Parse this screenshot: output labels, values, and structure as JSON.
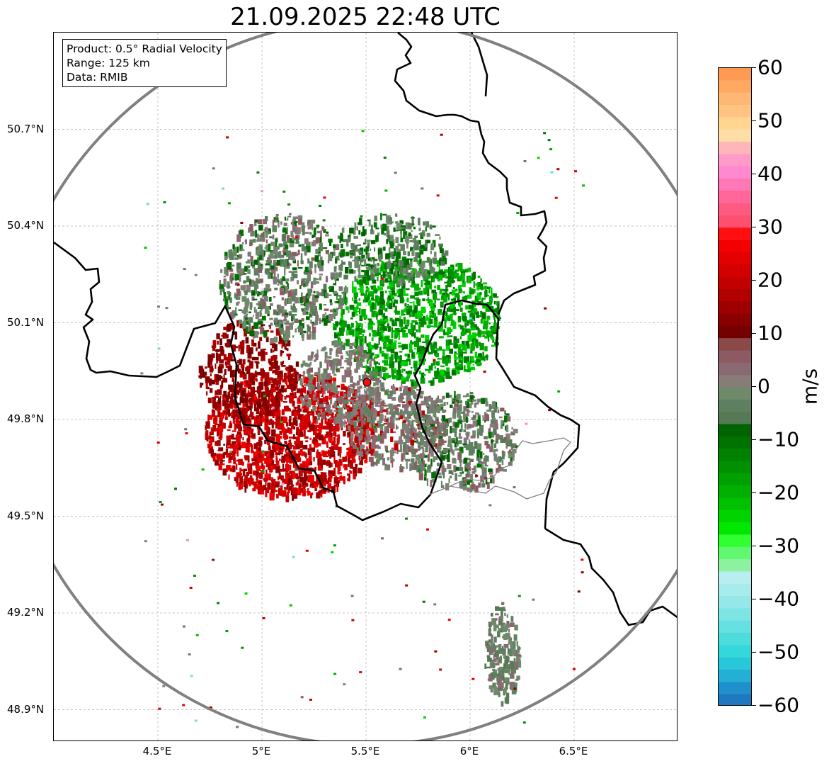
{
  "title": "21.09.2025 22:48 UTC",
  "info_box": {
    "product": "Product: 0.5° Radial Velocity",
    "range": "Range: 125 km",
    "data": "Data: RMIB"
  },
  "axes": {
    "lat_ticks": [
      "50.7°N",
      "50.4°N",
      "50.1°N",
      "49.8°N",
      "49.5°N",
      "49.2°N",
      "48.9°N"
    ],
    "lon_ticks": [
      "4.5°E",
      "5°E",
      "5.5°E",
      "6°E",
      "6.5°E"
    ],
    "lat_values": [
      50.7,
      50.4,
      50.1,
      49.8,
      49.5,
      49.2,
      48.9
    ],
    "lon_values": [
      4.5,
      5.0,
      5.5,
      6.0,
      6.5
    ],
    "lon_range": [
      4.0,
      7.0
    ],
    "lat_range": [
      48.8,
      51.0
    ],
    "gridlines": true
  },
  "radar": {
    "site_lon": 5.505,
    "site_lat": 49.915,
    "range_km": 125,
    "site_color": "#ee1111",
    "range_ring_color": "#808080"
  },
  "colorbar": {
    "label": "m/s",
    "vmin": -60,
    "vmax": 60,
    "ticks": [
      "60",
      "50",
      "40",
      "30",
      "20",
      "10",
      "0",
      "−10",
      "−20",
      "−30",
      "−40",
      "−50",
      "−60"
    ],
    "colors_top_to_bottom": [
      "#ff9a55",
      "#ffa862",
      "#ffb873",
      "#ffc481",
      "#ffd58f",
      "#ffdda6",
      "#ffb6b8",
      "#ff9ac9",
      "#ff88d0",
      "#ff77b5",
      "#ff6699",
      "#ff5a82",
      "#ff4f6e",
      "#ff1010",
      "#f40000",
      "#e40000",
      "#d40000",
      "#c20000",
      "#b00000",
      "#9e0000",
      "#8a0000",
      "#750000",
      "#8a4a4a",
      "#8e5a62",
      "#8a6a72",
      "#877c78",
      "#6f8a6a",
      "#5f8060",
      "#557a55",
      "#006400",
      "#007200",
      "#008200",
      "#009000",
      "#00a000",
      "#00b000",
      "#00c000",
      "#00d400",
      "#00e800",
      "#30ff30",
      "#60f870",
      "#8cf2a0",
      "#b8eef0",
      "#a6ecec",
      "#94e8e8",
      "#7fe4e4",
      "#66e0e0",
      "#4ddcdc",
      "#33d8dc",
      "#28c8d8",
      "#24b0d4",
      "#2090cc",
      "#1f78c0"
    ]
  }
}
